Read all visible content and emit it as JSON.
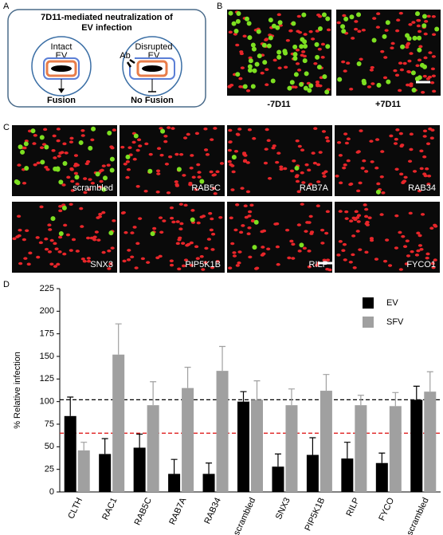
{
  "panel_letters": [
    "A",
    "B",
    "C",
    "D"
  ],
  "panel_a": {
    "title": [
      "7D11-mediated neutralization of",
      "EV infection"
    ],
    "left": {
      "label": [
        "Intact",
        "EV"
      ],
      "outcome": "Fusion"
    },
    "right": {
      "label": [
        "Disrupted",
        "EV"
      ],
      "antibody": "Ab",
      "outcome": "No Fusion"
    }
  },
  "panel_b": {
    "labels": [
      "-7D11",
      "+7D11"
    ]
  },
  "panel_c": {
    "labels": [
      "scrambled",
      "RAB5C",
      "RAB7A",
      "RAB34",
      "SNX3",
      "PIP5K1B",
      "RILP",
      "FYCO1"
    ]
  },
  "chart_data": {
    "type": "bar",
    "y_label": "% Relative infection",
    "categories": [
      "CLTH",
      "RAC1",
      "RAB5C",
      "RAB7A",
      "RAB34",
      "scrambled",
      "SNX3",
      "PIP5K1B",
      "RILP",
      "FYCO",
      "scrambled"
    ],
    "series": [
      {
        "name": "EV",
        "color": "#000000",
        "values": [
          84,
          42,
          49,
          20,
          20,
          100,
          28,
          41,
          37,
          32,
          102
        ],
        "errors": [
          21,
          17,
          15,
          16,
          12,
          11,
          14,
          19,
          18,
          11,
          15
        ]
      },
      {
        "name": "SFV",
        "color": "#a0a0a0",
        "values": [
          46,
          152,
          96,
          115,
          134,
          102,
          96,
          112,
          96,
          95,
          111
        ],
        "errors": [
          9,
          34,
          26,
          23,
          27,
          21,
          18,
          18,
          11,
          15,
          22
        ]
      }
    ],
    "reference_lines": [
      {
        "value": 102,
        "color": "#000000"
      },
      {
        "value": 65,
        "color": "#e02020"
      }
    ],
    "ylim": [
      0,
      225
    ],
    "yticks": [
      0,
      25,
      50,
      75,
      100,
      125,
      150,
      175,
      200,
      225
    ],
    "legend": "upper right"
  }
}
